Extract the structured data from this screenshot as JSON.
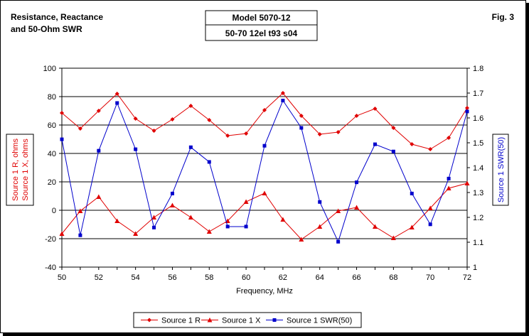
{
  "chart_data": {
    "type": "line",
    "title_lines": [
      "Resistance, Reactance",
      "and 50-Ohm SWR"
    ],
    "model_box_lines": [
      "Model 5070-12",
      "50-70 12el t93 s04"
    ],
    "fig_label": "Fig. 3",
    "xlabel": "Frequency, MHz",
    "ylabel_left_lines": [
      "Source 1 R, ohms",
      "Source 1 X, ohms"
    ],
    "ylabel_right": "Source 1 SWR(50)",
    "x": [
      50,
      51,
      52,
      53,
      54,
      55,
      56,
      57,
      58,
      59,
      60,
      61,
      62,
      63,
      64,
      65,
      66,
      67,
      68,
      69,
      70,
      71,
      72
    ],
    "xlim": [
      50,
      72
    ],
    "x_ticks": [
      50,
      52,
      54,
      56,
      58,
      60,
      62,
      64,
      66,
      68,
      70,
      72
    ],
    "ylim_left": [
      -40,
      100
    ],
    "y_left_ticks": [
      -40,
      -20,
      0,
      20,
      40,
      60,
      80,
      100
    ],
    "ylim_right": [
      1.0,
      1.8
    ],
    "y_right_ticks": [
      "1",
      "1.1",
      "1.2",
      "1.3",
      "1.4",
      "1.5",
      "1.6",
      "1.7",
      "1.8"
    ],
    "grid": "horizontal",
    "legend_position": "bottom",
    "series": [
      {
        "name": "Source 1 R",
        "axis": "left",
        "marker": "diamond",
        "color": "#e00000",
        "values": [
          68.5,
          57.5,
          70,
          82,
          64.5,
          56,
          64,
          73.5,
          63.5,
          52.5,
          54,
          70.5,
          82.5,
          66.5,
          53.5,
          55,
          66.5,
          71.5,
          58,
          46.5,
          43,
          51,
          72
        ]
      },
      {
        "name": "Source 1 X",
        "axis": "left",
        "marker": "triangle",
        "color": "#e00000",
        "values": [
          -16.5,
          -0.5,
          9.5,
          -7.5,
          -16.5,
          -5,
          3.5,
          -5,
          -15,
          -7.5,
          6,
          12,
          -6.5,
          -20.5,
          -11.5,
          -0.5,
          2,
          -11.5,
          -19.5,
          -12,
          1.5,
          15.5,
          19
        ]
      },
      {
        "name": "Source 1 SWR(50)",
        "axis": "right",
        "marker": "square",
        "color": "#0000cc",
        "values": [
          1.514,
          1.128,
          1.468,
          1.66,
          1.474,
          1.159,
          1.296,
          1.482,
          1.423,
          1.163,
          1.163,
          1.488,
          1.67,
          1.56,
          1.262,
          1.102,
          1.341,
          1.494,
          1.465,
          1.296,
          1.172,
          1.356,
          1.626
        ]
      }
    ]
  }
}
